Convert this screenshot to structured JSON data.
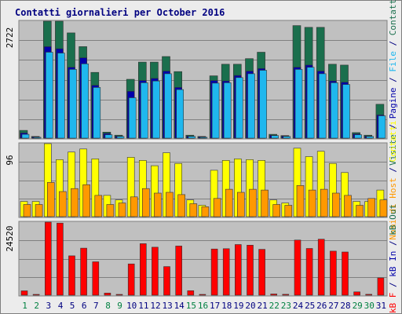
{
  "title": "Contatti giornalieri per October 2016",
  "colors": {
    "visits": "#1a6f4d",
    "pages": "#0000aa",
    "files": "#1fb7ee",
    "hits": "#ffff00",
    "sites": "#ff9900",
    "kbytes": "#ff0000",
    "plot_bg": "#c0c0c0",
    "grid": "#808080",
    "weekday_label": "#000080",
    "weekend_label": "#008040"
  },
  "chart_data": [
    {
      "type": "bar",
      "panel": "top",
      "y_tick_label": "2722",
      "ylim": [
        0,
        2722
      ],
      "side_label_parts": [
        {
          "text": "Visite",
          "color": "#1a6f4d"
        },
        {
          "text": " / ",
          "color": "#000080"
        },
        {
          "text": "Pagine",
          "color": "#0000aa"
        },
        {
          "text": " / ",
          "color": "#000080"
        },
        {
          "text": "File",
          "color": "#1fb7ee"
        },
        {
          "text": " / ",
          "color": "#000080"
        },
        {
          "text": "Contatti",
          "color": "#1a6f4d"
        }
      ],
      "categories": [
        "1",
        "2",
        "3",
        "4",
        "5",
        "6",
        "7",
        "8",
        "9",
        "10",
        "11",
        "12",
        "13",
        "14",
        "15",
        "16",
        "17",
        "18",
        "19",
        "20",
        "21",
        "22",
        "23",
        "24",
        "25",
        "26",
        "27",
        "28",
        "29",
        "30",
        "31"
      ],
      "series": [
        {
          "name": "Contatti",
          "values": [
            180,
            40,
            2722,
            2722,
            2450,
            2130,
            1530,
            140,
            70,
            1370,
            1770,
            1770,
            1900,
            1550,
            70,
            40,
            1450,
            1720,
            1720,
            1850,
            2000,
            90,
            60,
            2620,
            2580,
            2580,
            1720,
            1700,
            130,
            70,
            790
          ]
        },
        {
          "name": "Pagine",
          "values": [
            120,
            30,
            2130,
            2080,
            1650,
            1870,
            1230,
            110,
            50,
            1090,
            1340,
            1390,
            1560,
            1180,
            50,
            30,
            1340,
            1330,
            1460,
            1560,
            1620,
            70,
            50,
            1650,
            1700,
            1560,
            1330,
            1300,
            100,
            50,
            540
          ]
        },
        {
          "name": "File",
          "values": [
            90,
            20,
            2000,
            1980,
            1600,
            1730,
            1180,
            80,
            40,
            940,
            1290,
            1330,
            1500,
            1130,
            40,
            20,
            1280,
            1290,
            1410,
            1500,
            1580,
            60,
            40,
            1600,
            1650,
            1500,
            1290,
            1250,
            80,
            40,
            520
          ]
        }
      ]
    },
    {
      "type": "bar",
      "panel": "middle",
      "y_tick_label": "96",
      "ylim": [
        0,
        96
      ],
      "side_label_parts": [
        {
          "text": "Nomi di Host",
          "color": "#ff9900"
        },
        {
          "text": " / ",
          "color": "#000080"
        },
        {
          "text": "Contatti",
          "color": "#ffff00"
        }
      ],
      "categories": [
        "1",
        "2",
        "3",
        "4",
        "5",
        "6",
        "7",
        "8",
        "9",
        "10",
        "11",
        "12",
        "13",
        "14",
        "15",
        "16",
        "17",
        "18",
        "19",
        "20",
        "21",
        "22",
        "23",
        "24",
        "25",
        "26",
        "27",
        "28",
        "29",
        "30",
        "31"
      ],
      "series": [
        {
          "name": "Contatti",
          "values": [
            20,
            20,
            96,
            75,
            85,
            89,
            76,
            28,
            22,
            78,
            74,
            67,
            84,
            70,
            22,
            15,
            61,
            74,
            76,
            75,
            74,
            22,
            18,
            90,
            79,
            86,
            70,
            58,
            20,
            20,
            35
          ]
        },
        {
          "name": "Nomi di Host",
          "values": [
            16,
            16,
            45,
            33,
            37,
            42,
            28,
            16,
            18,
            26,
            37,
            31,
            32,
            29,
            17,
            13,
            24,
            36,
            32,
            36,
            35,
            16,
            15,
            41,
            35,
            36,
            31,
            28,
            15,
            24,
            22
          ]
        }
      ]
    },
    {
      "type": "bar",
      "panel": "bottom",
      "y_tick_label": "24520",
      "ylim": [
        0,
        24520
      ],
      "side_label_parts": [
        {
          "text": "kB F",
          "color": "#ff0000"
        },
        {
          "text": " / ",
          "color": "#000080"
        },
        {
          "text": "kB In",
          "color": "#0000aa"
        },
        {
          "text": " / ",
          "color": "#000080"
        },
        {
          "text": "kB Out",
          "color": "#1a6f4d"
        }
      ],
      "categories": [
        "1",
        "2",
        "3",
        "4",
        "5",
        "6",
        "7",
        "8",
        "9",
        "10",
        "11",
        "12",
        "13",
        "14",
        "15",
        "16",
        "17",
        "18",
        "19",
        "20",
        "21",
        "22",
        "23",
        "24",
        "25",
        "26",
        "27",
        "28",
        "29",
        "30",
        "31"
      ],
      "series": [
        {
          "name": "kB F",
          "values": [
            1450,
            200,
            24520,
            24200,
            13200,
            15800,
            11200,
            700,
            200,
            10500,
            17300,
            16100,
            9600,
            16500,
            1500,
            200,
            15500,
            15600,
            17000,
            16800,
            15400,
            400,
            300,
            18500,
            15700,
            18800,
            14800,
            14500,
            1100,
            300,
            5800
          ]
        }
      ]
    }
  ],
  "days": [
    {
      "label": "1",
      "weekend": true
    },
    {
      "label": "2",
      "weekend": true
    },
    {
      "label": "3",
      "weekend": false
    },
    {
      "label": "4",
      "weekend": false
    },
    {
      "label": "5",
      "weekend": false
    },
    {
      "label": "6",
      "weekend": false
    },
    {
      "label": "7",
      "weekend": false
    },
    {
      "label": "8",
      "weekend": true
    },
    {
      "label": "9",
      "weekend": true
    },
    {
      "label": "10",
      "weekend": false
    },
    {
      "label": "11",
      "weekend": false
    },
    {
      "label": "12",
      "weekend": false
    },
    {
      "label": "13",
      "weekend": false
    },
    {
      "label": "14",
      "weekend": false
    },
    {
      "label": "15",
      "weekend": true
    },
    {
      "label": "16",
      "weekend": true
    },
    {
      "label": "17",
      "weekend": false
    },
    {
      "label": "18",
      "weekend": false
    },
    {
      "label": "19",
      "weekend": false
    },
    {
      "label": "20",
      "weekend": false
    },
    {
      "label": "21",
      "weekend": false
    },
    {
      "label": "22",
      "weekend": true
    },
    {
      "label": "23",
      "weekend": true
    },
    {
      "label": "24",
      "weekend": false
    },
    {
      "label": "25",
      "weekend": false
    },
    {
      "label": "26",
      "weekend": false
    },
    {
      "label": "27",
      "weekend": false
    },
    {
      "label": "28",
      "weekend": false
    },
    {
      "label": "29",
      "weekend": true
    },
    {
      "label": "30",
      "weekend": true
    },
    {
      "label": "31",
      "weekend": false
    }
  ]
}
